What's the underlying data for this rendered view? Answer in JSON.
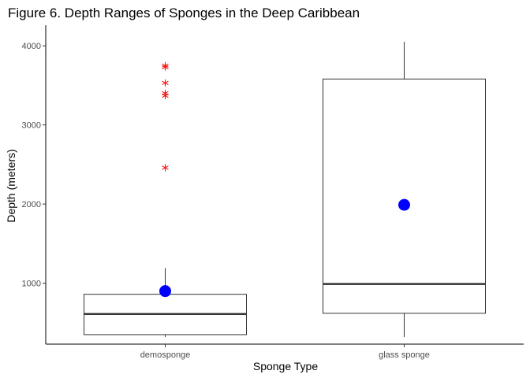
{
  "chart_data": {
    "type": "boxplot",
    "title": "Figure 6. Depth Ranges of Sponges in the Deep Caribbean",
    "xlabel": "Sponge Type",
    "ylabel": "Depth (meters)",
    "categories": [
      "demosponge",
      "glass sponge"
    ],
    "yticks": [
      1000,
      2000,
      3000,
      4000
    ],
    "ylim": [
      230,
      4260
    ],
    "grid": false,
    "boxes": [
      {
        "category": "demosponge",
        "whisker_low": 320,
        "q1": 350,
        "median": 610,
        "q3": 860,
        "whisker_high": 1190,
        "mean": 900,
        "outliers": [
          2460,
          3370,
          3400,
          3530,
          3730,
          3750
        ]
      },
      {
        "category": "glass sponge",
        "whisker_low": 320,
        "q1": 620,
        "median": 990,
        "q3": 3580,
        "whisker_high": 4050,
        "mean": 1990,
        "outliers": []
      }
    ],
    "colors": {
      "box": "#333333",
      "median": "#333333",
      "outlier": "#ff0000",
      "mean": "#0000ff",
      "axis": "#000000",
      "tick_text": "#4d4d4d"
    }
  }
}
